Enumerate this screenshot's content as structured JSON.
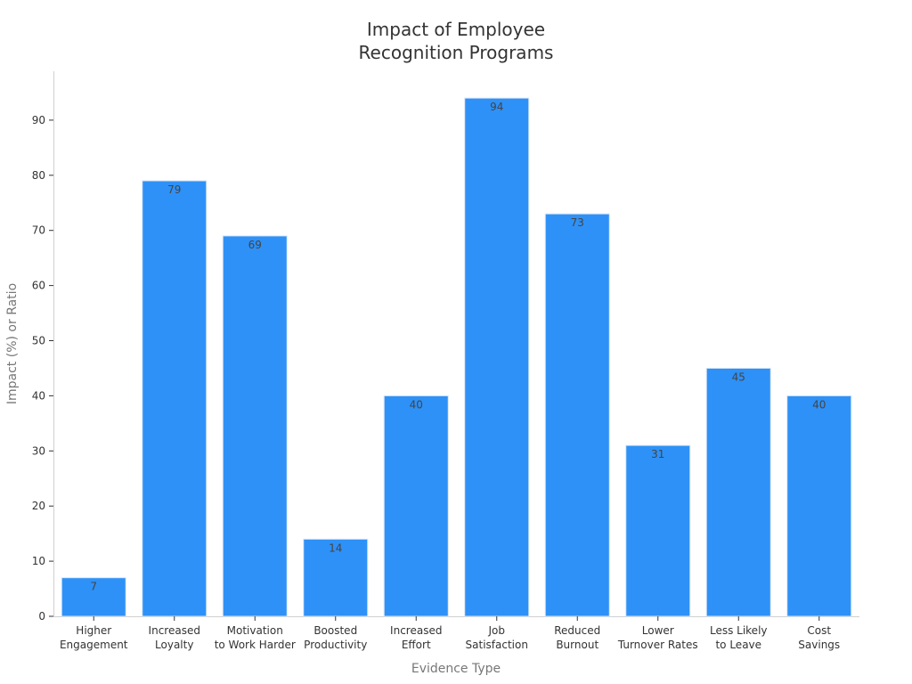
{
  "chart_data": {
    "type": "bar",
    "title": [
      "Impact of Employee",
      "Recognition Programs"
    ],
    "xlabel": "Evidence Type",
    "ylabel": "Impact (%) or Ratio",
    "categories": [
      [
        "Higher",
        "Engagement"
      ],
      [
        "Increased",
        "Loyalty"
      ],
      [
        "Motivation",
        "to Work Harder"
      ],
      [
        "Boosted",
        "Productivity"
      ],
      [
        "Increased",
        "Effort"
      ],
      [
        "Job",
        "Satisfaction"
      ],
      [
        "Reduced",
        "Burnout"
      ],
      [
        "Lower",
        "Turnover Rates"
      ],
      [
        "Less Likely",
        "to Leave"
      ],
      [
        "Cost",
        "Savings"
      ]
    ],
    "values": [
      7,
      79,
      69,
      14,
      40,
      94,
      73,
      31,
      45,
      40
    ],
    "ylim": [
      0,
      99
    ],
    "yticks": [
      0,
      10,
      20,
      30,
      40,
      50,
      60,
      70,
      80,
      90
    ],
    "grid": false,
    "bar_color": "#2E91F7"
  }
}
